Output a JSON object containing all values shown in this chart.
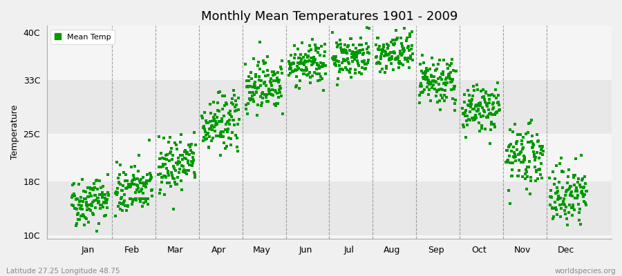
{
  "title": "Monthly Mean Temperatures 1901 - 2009",
  "ylabel": "Temperature",
  "bottom_left_label": "Latitude 27.25 Longitude 48.75",
  "bottom_right_label": "worldspecies.org",
  "months": [
    "Jan",
    "Feb",
    "Mar",
    "Apr",
    "May",
    "Jun",
    "Jul",
    "Aug",
    "Sep",
    "Oct",
    "Nov",
    "Dec"
  ],
  "ytick_labels": [
    "10C",
    "18C",
    "25C",
    "33C",
    "40C"
  ],
  "ytick_values": [
    10,
    18,
    25,
    33,
    40
  ],
  "ylim": [
    9.5,
    41
  ],
  "xlim": [
    -0.5,
    12.5
  ],
  "dot_color": "#009900",
  "dot_size": 6,
  "bg_light": "#f0f0f0",
  "bg_dark": "#e0e0e0",
  "legend_label": "Mean Temp",
  "n_years": 109,
  "seed": 42,
  "monthly_means": [
    15.2,
    16.8,
    20.5,
    26.5,
    32.5,
    35.2,
    36.5,
    36.8,
    32.5,
    28.5,
    21.5,
    16.0
  ],
  "monthly_stds": [
    1.8,
    1.8,
    2.0,
    2.2,
    2.0,
    1.5,
    1.5,
    1.5,
    1.8,
    1.8,
    2.2,
    2.2
  ],
  "monthly_trends": [
    0.008,
    0.008,
    0.01,
    0.01,
    0.008,
    0.006,
    0.006,
    0.006,
    0.008,
    0.008,
    0.01,
    0.01
  ],
  "band_ranges": [
    [
      10,
      18
    ],
    [
      18,
      25
    ],
    [
      25,
      33
    ],
    [
      33,
      40
    ]
  ],
  "band_colors": [
    "#e8e8e8",
    "#f5f5f5",
    "#e8e8e8",
    "#f5f5f5"
  ]
}
